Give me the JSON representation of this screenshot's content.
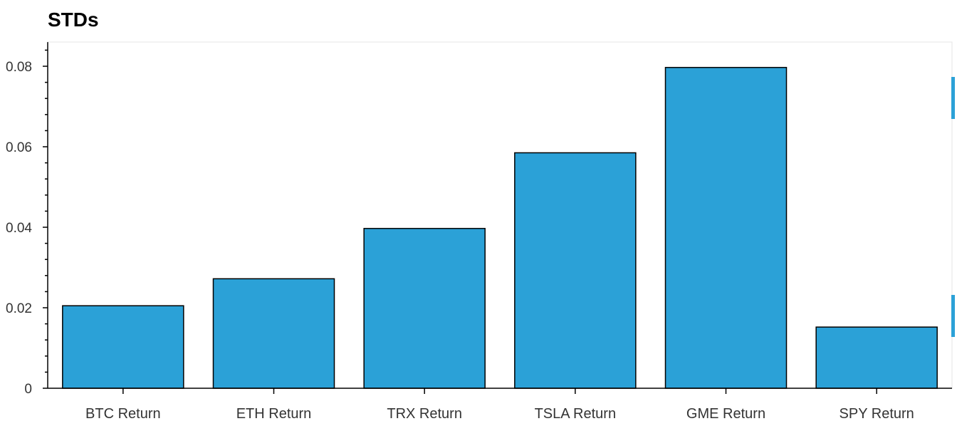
{
  "chart_data": {
    "type": "bar",
    "title": "STDs",
    "xlabel": "",
    "ylabel": "",
    "categories": [
      "BTC Return",
      "ETH Return",
      "TRX Return",
      "TSLA Return",
      "GME Return",
      "SPY Return"
    ],
    "values": [
      0.0205,
      0.0272,
      0.0397,
      0.0585,
      0.0797,
      0.0152
    ],
    "ylim": [
      0,
      0.086
    ],
    "yticks": [
      0,
      0.02,
      0.04,
      0.06,
      0.08
    ],
    "ytick_labels": [
      "0",
      "0.02",
      "0.04",
      "0.06",
      "0.08"
    ],
    "grid": false,
    "colors": {
      "bar_fill": "#2ba1d7",
      "bar_stroke": "#000000",
      "axis": "#000000",
      "frame": "#e5e5e5",
      "toolbar_accent": "#2ba1d7"
    }
  }
}
